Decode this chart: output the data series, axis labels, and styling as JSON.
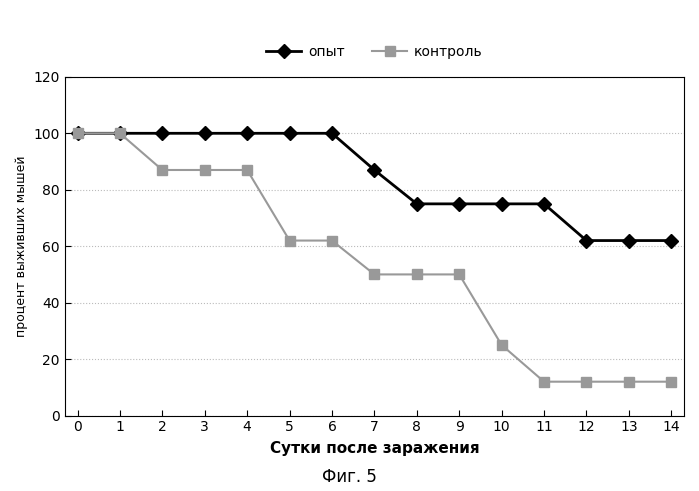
{
  "x": [
    0,
    1,
    2,
    3,
    4,
    5,
    6,
    7,
    8,
    9,
    10,
    11,
    12,
    13,
    14
  ],
  "opyt": [
    100,
    100,
    100,
    100,
    100,
    100,
    100,
    87,
    75,
    75,
    75,
    75,
    62,
    62,
    62
  ],
  "kontrol": [
    100,
    100,
    87,
    87,
    87,
    62,
    62,
    50,
    50,
    50,
    25,
    12,
    12,
    12,
    12
  ],
  "opyt_label": "опыт",
  "kontrol_label": "контроль",
  "xlabel": "Сутки после заражения",
  "ylabel": "процент выживших мышей",
  "caption": "Фиг. 5",
  "ylim": [
    0,
    120
  ],
  "xlim": [
    -0.3,
    14.3
  ],
  "yticks": [
    0,
    20,
    40,
    60,
    80,
    100,
    120
  ],
  "xticks": [
    0,
    1,
    2,
    3,
    4,
    5,
    6,
    7,
    8,
    9,
    10,
    11,
    12,
    13,
    14
  ],
  "opyt_color": "#000000",
  "kontrol_color": "#999999",
  "bg_color": "#ffffff",
  "grid_color": "#bbbbbb",
  "fig_width": 6.99,
  "fig_height": 4.91,
  "dpi": 100
}
